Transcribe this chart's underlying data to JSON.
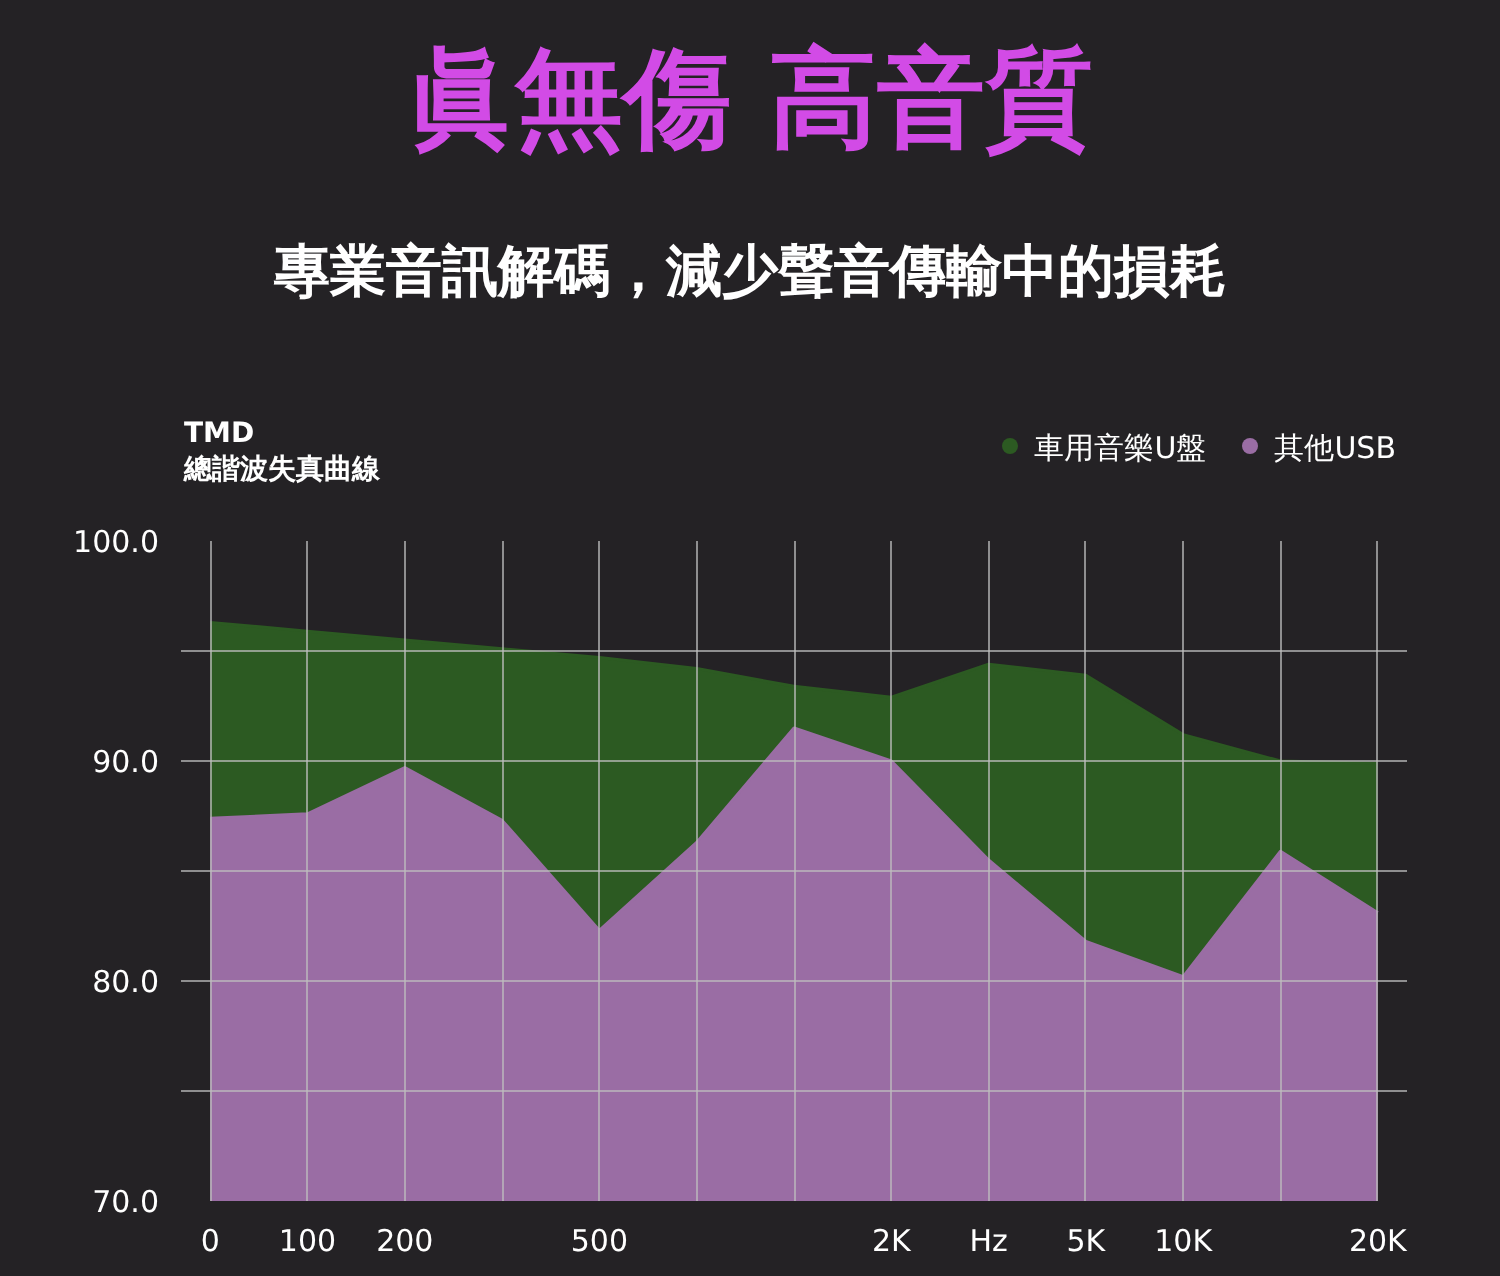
{
  "chart_data": {
    "type": "area",
    "title": "眞無傷 高音質",
    "subtitle": "專業音訊解碼，減少聲音傳輸中的損耗",
    "annotations": [
      "TMD",
      "總諧波失真曲線"
    ],
    "categories": [
      "0",
      "100",
      "200",
      null,
      "500",
      null,
      null,
      "2K",
      "Hz",
      "5K",
      "10K",
      null,
      "20K"
    ],
    "series": [
      {
        "name": "車用音樂U盤",
        "color": "#2c5a22",
        "values": [
          96.3,
          95.9,
          95.5,
          95.1,
          94.7,
          94.2,
          93.4,
          92.9,
          94.4,
          93.9,
          91.2,
          90.0,
          89.9
        ]
      },
      {
        "name": "其他USB",
        "color": "#9a6da4",
        "values": [
          87.4,
          87.6,
          89.7,
          87.3,
          82.3,
          86.3,
          91.5,
          90.0,
          85.5,
          81.8,
          80.2,
          85.9,
          83.1
        ]
      }
    ],
    "ylim": [
      70,
      100
    ],
    "yticks": [
      {
        "value": 70,
        "label": "70.0"
      },
      {
        "value": 75,
        "label": null
      },
      {
        "value": 80,
        "label": "80.0"
      },
      {
        "value": 85,
        "label": null
      },
      {
        "value": 90,
        "label": "90.0"
      },
      {
        "value": 95,
        "label": null
      },
      {
        "value": 100,
        "label": "100.0"
      }
    ],
    "grid": true,
    "legend": "top right"
  }
}
